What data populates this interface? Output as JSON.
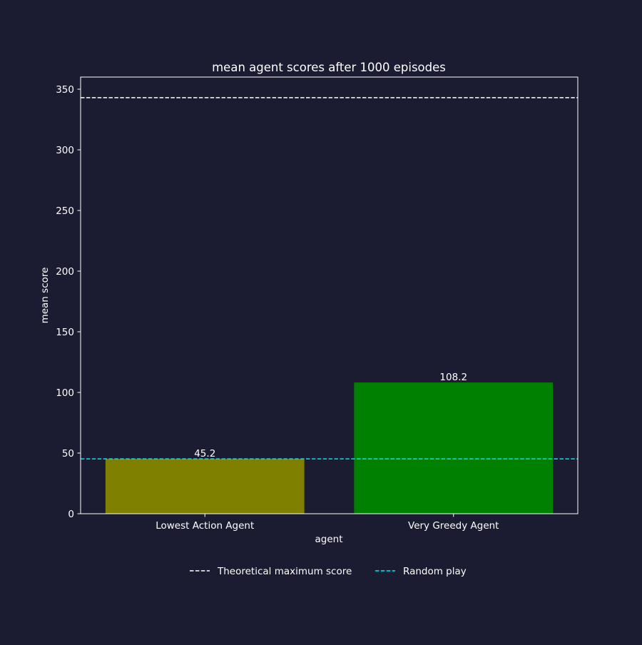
{
  "chart_data": {
    "type": "bar",
    "title": "mean agent scores after 1000 episodes",
    "xlabel": "agent",
    "ylabel": "mean score",
    "categories": [
      "Lowest Action Agent",
      "Very Greedy Agent"
    ],
    "values": [
      45.2,
      108.2
    ],
    "value_labels": [
      "45.2",
      "108.2"
    ],
    "bar_colors": [
      "#808000",
      "#008000"
    ],
    "ylim": [
      0,
      360
    ],
    "yticks": [
      0,
      50,
      100,
      150,
      200,
      250,
      300,
      350
    ],
    "grid": false,
    "reference_lines": [
      {
        "name": "Theoretical maximum score",
        "value": 343,
        "color": "#ffffff",
        "style": "dashed"
      },
      {
        "name": "Random play",
        "value": 45.2,
        "color": "#00e5ee",
        "style": "dashed"
      }
    ],
    "legend": {
      "placement": "bottom-center",
      "entries": [
        "Theoretical maximum score",
        "Random play"
      ]
    }
  },
  "colors": {
    "background": "#1b1b31",
    "foreground": "#ffffff"
  }
}
